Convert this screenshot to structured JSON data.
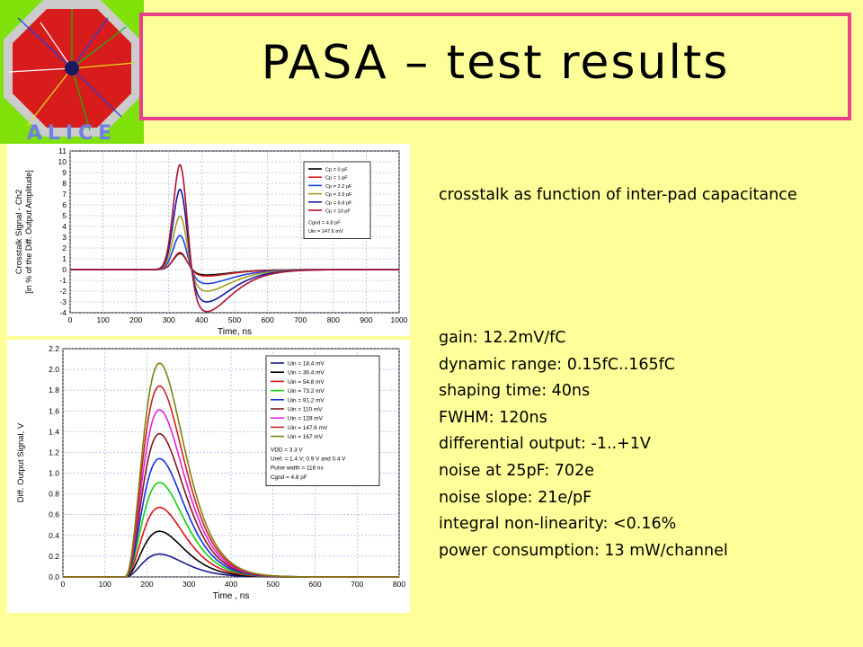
{
  "title": "PASA – test results",
  "logo": {
    "text": "ALICE",
    "colors": {
      "octagon_fill": "#D81B1B",
      "background": "#7FE00A"
    }
  },
  "caption": "crosstalk as function of inter-pad capacitance",
  "specs": [
    "gain: 12.2mV/fC",
    "dynamic range: 0.15fC..165fC",
    "shaping time: 40ns",
    "FWHM: 120ns",
    "differential output: -1..+1V",
    "noise at 25pF: 702e",
    "noise slope: 21e/pF",
    "integral non-linearity: <0.16%",
    "power consumption: 13 mW/channel"
  ],
  "chart_data": [
    {
      "type": "line",
      "xlabel": "Time, ns",
      "ylabel": "Crosstalk Signal - Ch2",
      "ylabel2": "[in % of the Diff. Output Amplitude]",
      "xlim": [
        0,
        1000
      ],
      "ylim": [
        -4,
        11
      ],
      "xticks": [
        0,
        100,
        200,
        300,
        400,
        500,
        600,
        700,
        800,
        900,
        1000
      ],
      "yticks": [
        -4,
        -3,
        -2,
        -1,
        0,
        1,
        2,
        3,
        4,
        5,
        6,
        7,
        8,
        9,
        10,
        11
      ],
      "grid": true,
      "legend_position": "top-right",
      "legend_notes": [
        "Cgnd = 4.8 pF",
        "Uin = 147.6 mV"
      ],
      "series": [
        {
          "name": "Cp = 0 pF",
          "color": "#000000",
          "peak": 1.5,
          "trough": -0.5
        },
        {
          "name": "Cp = 1 pF",
          "color": "#D02020",
          "peak": 1.6,
          "trough": -0.6
        },
        {
          "name": "Cp = 2.2 pF",
          "color": "#2040E0",
          "peak": 3.2,
          "trough": -1.3
        },
        {
          "name": "Cp = 3.9 pF",
          "color": "#A0A020",
          "peak": 5.0,
          "trough": -2.0
        },
        {
          "name": "Cp = 6.8 pF",
          "color": "#1A1AA0",
          "peak": 7.5,
          "trough": -3.0
        },
        {
          "name": "Cp = 10 pF",
          "color": "#B01030",
          "peak": 9.8,
          "trough": -3.9
        }
      ]
    },
    {
      "type": "line",
      "xlabel": "Time , ns",
      "ylabel": "Diff. Output Signal, V",
      "xlim": [
        0,
        800
      ],
      "ylim": [
        0,
        2.2
      ],
      "xticks": [
        0,
        100,
        200,
        300,
        400,
        500,
        600,
        700,
        800
      ],
      "yticks": [
        0.0,
        0.2,
        0.4,
        0.6,
        0.8,
        1.0,
        1.2,
        1.4,
        1.6,
        1.8,
        2.0,
        2.2
      ],
      "grid": true,
      "legend_position": "top-right",
      "legend_notes": [
        "VDD = 3.3 V",
        "Uref. = 1.4 V; 0.9 V and 0.4 V",
        "Pulse width = 116 ns",
        "Cgnd = 4.8 pF"
      ],
      "series": [
        {
          "name": "Uin = 18.4 mV",
          "color": "#1A1A90",
          "peak": 0.22
        },
        {
          "name": "Uin = 36.4 mV",
          "color": "#000000",
          "peak": 0.44
        },
        {
          "name": "Uin = 54.8 mV",
          "color": "#E01010",
          "peak": 0.67
        },
        {
          "name": "Uin = 73.2 mV",
          "color": "#10D010",
          "peak": 0.91
        },
        {
          "name": "Uin = 91.2 mV",
          "color": "#1030E0",
          "peak": 1.14
        },
        {
          "name": "Uin = 110 mV",
          "color": "#801818",
          "peak": 1.38
        },
        {
          "name": "Uin = 128 mV",
          "color": "#E020E0",
          "peak": 1.61
        },
        {
          "name": "Uin = 147.6 mV",
          "color": "#D02020",
          "peak": 1.84
        },
        {
          "name": "Uin = 167 mV",
          "color": "#808010",
          "peak": 2.06
        }
      ]
    }
  ]
}
